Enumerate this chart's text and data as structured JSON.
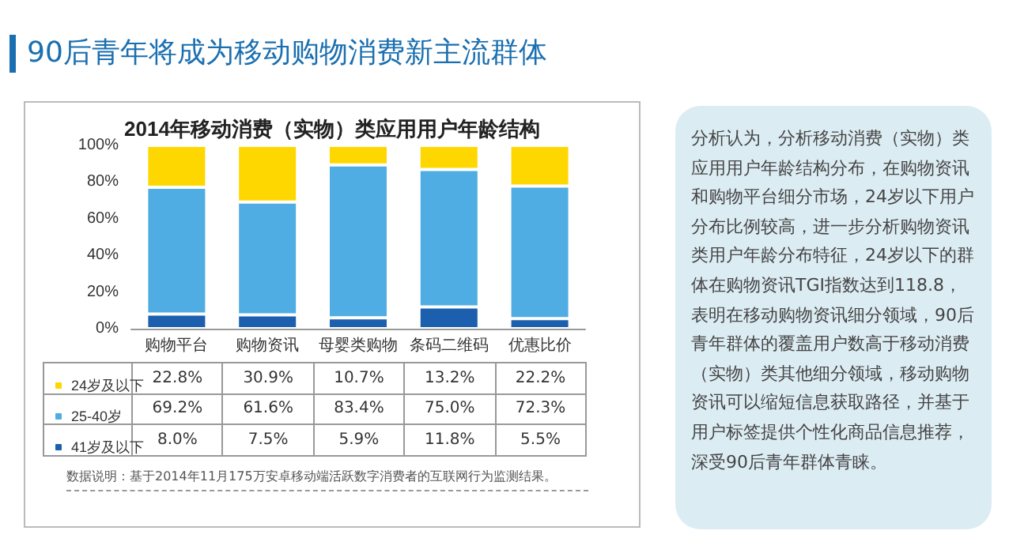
{
  "chart_data": {
    "type": "bar",
    "stacked": true,
    "title": "90后青年将成为移动购物消费新主流群体",
    "subtitle": "2014年移动消费（实物）类应用用户年龄结构",
    "categories": [
      "购物平台",
      "购物资讯",
      "母婴类购物",
      "条码二维码",
      "优惠比价"
    ],
    "series": [
      {
        "name": "41岁及以下",
        "color": "#1b5fae",
        "values": [
          8.0,
          7.5,
          5.9,
          11.8,
          5.5
        ],
        "value_labels": [
          "8.0%",
          "7.5%",
          "5.9%",
          "11.8%",
          "5.5%"
        ]
      },
      {
        "name": "25-40岁",
        "color": "#4fade3",
        "values": [
          69.2,
          61.6,
          83.4,
          75.0,
          72.3
        ],
        "value_labels": [
          "69.2%",
          "61.6%",
          "83.4%",
          "75.0%",
          "72.3%"
        ]
      },
      {
        "name": "24岁及以下",
        "color": "#ffd700",
        "values": [
          22.8,
          30.9,
          10.7,
          13.2,
          22.2
        ],
        "value_labels": [
          "22.8%",
          "30.9%",
          "10.7%",
          "13.2%",
          "22.2%"
        ]
      }
    ],
    "ylim": [
      0,
      100
    ],
    "yticks": [
      {
        "value": 0,
        "label": "0%"
      },
      {
        "value": 20,
        "label": "20%"
      },
      {
        "value": 40,
        "label": "40%"
      },
      {
        "value": 60,
        "label": "60%"
      },
      {
        "value": 80,
        "label": "80%"
      },
      {
        "value": 100,
        "label": "100%"
      }
    ],
    "grid": false,
    "legend": "bottom left",
    "annotations": [
      "数据说明：基于2014年11月175万安卓移动端活跃数字消费者的互联网行为监测结果。",
      "分析认为，分析移动消费（实物）类应用用户年龄结构分布，在购物资讯和购物平台细分市场，24岁以下用户分布比例较高，进一步分析购物资讯类用户年龄分布特征，24岁以下的群体在购物资讯TGI指数达到118.8，表明在移动购物资讯细分领域，90后青年群体的覆盖用户数高于移动消费（实物）类其他细分领域，移动购物资讯可以缩短信息获取路径，并基于用户标签提供个性化商品信息推荐，深受90后青年群体青睐。"
    ]
  }
}
